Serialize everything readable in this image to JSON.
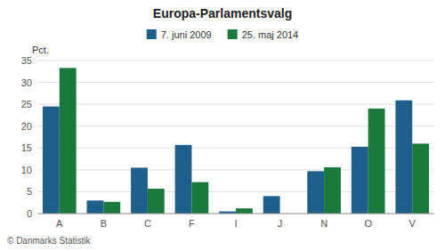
{
  "chart_data": {
    "type": "bar",
    "title": "Europa-Parlamentsvalg",
    "categories": [
      "A",
      "B",
      "C",
      "F",
      "I",
      "J",
      "N",
      "O",
      "V"
    ],
    "series": [
      {
        "name": "7. juni 2009",
        "color": "#1f5f8b",
        "values": [
          24.5,
          3.0,
          10.5,
          15.7,
          0.5,
          4.0,
          9.7,
          15.3,
          25.9
        ]
      },
      {
        "name": "25. maj 2014",
        "color": "#1a7a3c",
        "values": [
          33.3,
          2.7,
          5.7,
          7.2,
          1.2,
          0,
          10.6,
          24.0,
          16.0
        ]
      }
    ],
    "ylabel": "Pct.",
    "ylim": [
      0,
      35
    ],
    "yticks": [
      0,
      5,
      10,
      15,
      20,
      25,
      30,
      35
    ],
    "grid": true,
    "legend": "top",
    "annotations": [
      "© Danmarks Statistik"
    ]
  }
}
